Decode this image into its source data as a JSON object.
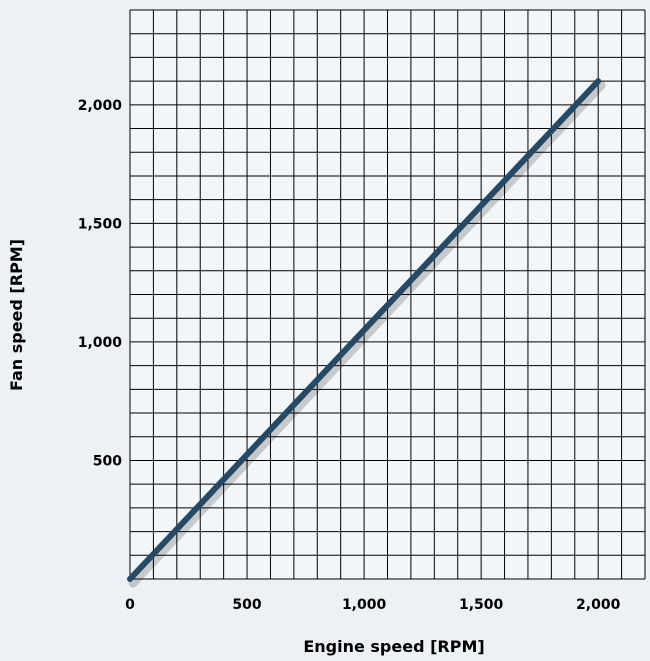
{
  "chart_data": {
    "type": "line",
    "title": "",
    "xlabel": "Engine speed [RPM]",
    "ylabel": "Fan speed [RPM]",
    "xlim": [
      0,
      2200
    ],
    "ylim": [
      0,
      2400
    ],
    "xticks": [
      0,
      500,
      1000,
      1500,
      2000
    ],
    "xtick_labels": [
      "0",
      "500",
      "1,000",
      "1,500",
      "2,000"
    ],
    "yticks": [
      500,
      1000,
      1500,
      2000
    ],
    "ytick_labels": [
      "500",
      "1,000",
      "1,500",
      "2,000"
    ],
    "grid": true,
    "x_minor_step": 100,
    "y_minor_step": 100,
    "series": [
      {
        "x": [
          0,
          2000
        ],
        "y": [
          0,
          2100
        ]
      }
    ],
    "colors": {
      "line": "#264a66",
      "background": "#edf1f5",
      "grid": "#000000"
    }
  }
}
